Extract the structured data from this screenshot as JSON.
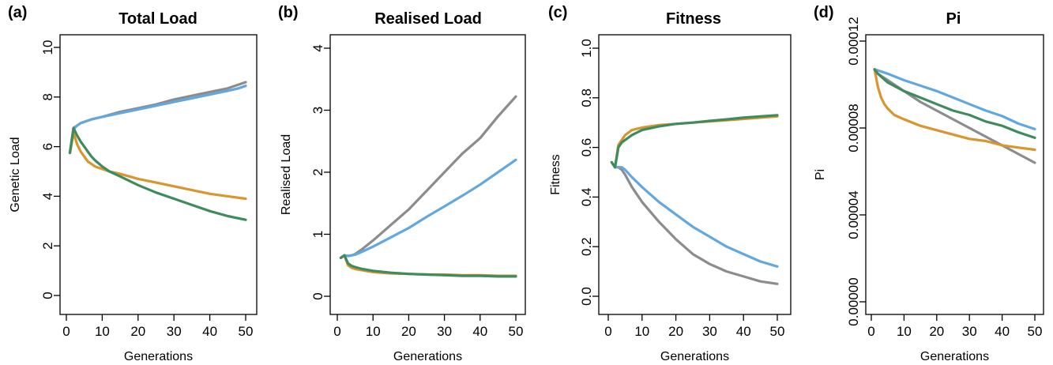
{
  "chart_data": [
    {
      "panel_label": "(a)",
      "type": "line",
      "title": "Total Load",
      "xlabel": "Generations",
      "ylabel": "Genetic Load",
      "xlim": [
        0,
        50
      ],
      "ylim": [
        0,
        10
      ],
      "xticks": [
        0,
        10,
        20,
        30,
        40,
        50
      ],
      "yticks": [
        0,
        2,
        4,
        6,
        8,
        10
      ],
      "ytick_labels": [
        "0",
        "2",
        "4",
        "6",
        "8",
        "10"
      ],
      "series": [
        {
          "color": "#8c8c8c",
          "x": [
            1,
            2,
            3,
            4,
            5,
            7,
            10,
            15,
            20,
            25,
            30,
            35,
            40,
            45,
            48,
            50
          ],
          "y": [
            5.75,
            6.75,
            6.85,
            6.95,
            7.0,
            7.1,
            7.2,
            7.4,
            7.55,
            7.7,
            7.9,
            8.05,
            8.2,
            8.35,
            8.5,
            8.6
          ]
        },
        {
          "color": "#62a8e0",
          "x": [
            1,
            2,
            3,
            4,
            5,
            7,
            10,
            15,
            20,
            25,
            30,
            35,
            40,
            45,
            48,
            50
          ],
          "y": [
            5.75,
            6.7,
            6.85,
            6.95,
            7.0,
            7.1,
            7.2,
            7.35,
            7.5,
            7.65,
            7.8,
            7.95,
            8.1,
            8.25,
            8.35,
            8.45
          ]
        },
        {
          "color": "#d9952e",
          "x": [
            1,
            2,
            3,
            4,
            5,
            6,
            7,
            8,
            10,
            12,
            15,
            20,
            25,
            30,
            35,
            40,
            45,
            50
          ],
          "y": [
            5.75,
            6.55,
            6.1,
            5.8,
            5.6,
            5.4,
            5.3,
            5.2,
            5.1,
            5.0,
            4.9,
            4.7,
            4.55,
            4.4,
            4.25,
            4.1,
            4.0,
            3.9
          ]
        },
        {
          "color": "#3e8c5e",
          "x": [
            1,
            2,
            3,
            4,
            5,
            6,
            7,
            8,
            10,
            12,
            15,
            20,
            25,
            30,
            35,
            40,
            45,
            50
          ],
          "y": [
            5.75,
            6.75,
            6.45,
            6.2,
            6.0,
            5.8,
            5.6,
            5.45,
            5.2,
            5.0,
            4.8,
            4.45,
            4.15,
            3.9,
            3.65,
            3.4,
            3.2,
            3.05
          ]
        }
      ]
    },
    {
      "panel_label": "(b)",
      "type": "line",
      "title": "Realised Load",
      "xlabel": "Generations",
      "ylabel": "Realised Load",
      "xlim": [
        0,
        50
      ],
      "ylim": [
        0,
        4
      ],
      "xticks": [
        0,
        10,
        20,
        30,
        40,
        50
      ],
      "yticks": [
        0,
        1,
        2,
        3,
        4
      ],
      "ytick_labels": [
        "0",
        "1",
        "2",
        "3",
        "4"
      ],
      "series": [
        {
          "color": "#8c8c8c",
          "x": [
            1,
            2,
            3,
            4,
            5,
            7,
            10,
            15,
            20,
            25,
            30,
            35,
            40,
            45,
            50
          ],
          "y": [
            0.62,
            0.66,
            0.65,
            0.66,
            0.68,
            0.76,
            0.9,
            1.15,
            1.4,
            1.7,
            2.0,
            2.3,
            2.55,
            2.9,
            3.22
          ]
        },
        {
          "color": "#62a8e0",
          "x": [
            1,
            2,
            3,
            4,
            5,
            7,
            10,
            15,
            20,
            25,
            30,
            35,
            40,
            45,
            50
          ],
          "y": [
            0.62,
            0.66,
            0.65,
            0.66,
            0.67,
            0.72,
            0.8,
            0.95,
            1.1,
            1.28,
            1.45,
            1.62,
            1.8,
            2.0,
            2.2
          ]
        },
        {
          "color": "#d9952e",
          "x": [
            1,
            2,
            3,
            4,
            5,
            7,
            10,
            15,
            20,
            25,
            30,
            35,
            40,
            45,
            50
          ],
          "y": [
            0.62,
            0.66,
            0.5,
            0.46,
            0.44,
            0.42,
            0.39,
            0.37,
            0.36,
            0.35,
            0.35,
            0.34,
            0.34,
            0.33,
            0.33
          ]
        },
        {
          "color": "#3e8c5e",
          "x": [
            1,
            2,
            3,
            4,
            5,
            7,
            10,
            15,
            20,
            25,
            30,
            35,
            40,
            45,
            50
          ],
          "y": [
            0.62,
            0.66,
            0.53,
            0.49,
            0.47,
            0.44,
            0.41,
            0.38,
            0.36,
            0.35,
            0.34,
            0.33,
            0.33,
            0.32,
            0.32
          ]
        }
      ]
    },
    {
      "panel_label": "(c)",
      "type": "line",
      "title": "Fitness",
      "xlabel": "Generations",
      "ylabel": "Fitness",
      "xlim": [
        0,
        50
      ],
      "ylim": [
        0,
        1
      ],
      "xticks": [
        0,
        10,
        20,
        30,
        40,
        50
      ],
      "yticks": [
        0,
        0.2,
        0.4,
        0.6,
        0.8,
        1.0
      ],
      "ytick_labels": [
        "0.0",
        "0.2",
        "0.4",
        "0.6",
        "0.8",
        "1.0"
      ],
      "series": [
        {
          "color": "#8c8c8c",
          "x": [
            1,
            2,
            3,
            4,
            5,
            7,
            10,
            15,
            20,
            25,
            30,
            35,
            40,
            45,
            50
          ],
          "y": [
            0.54,
            0.52,
            0.52,
            0.51,
            0.49,
            0.44,
            0.38,
            0.3,
            0.23,
            0.17,
            0.13,
            0.1,
            0.08,
            0.06,
            0.05
          ]
        },
        {
          "color": "#62a8e0",
          "x": [
            1,
            2,
            3,
            4,
            5,
            7,
            10,
            15,
            20,
            25,
            30,
            35,
            40,
            45,
            50
          ],
          "y": [
            0.54,
            0.52,
            0.52,
            0.52,
            0.51,
            0.48,
            0.44,
            0.38,
            0.33,
            0.28,
            0.24,
            0.2,
            0.17,
            0.14,
            0.12
          ]
        },
        {
          "color": "#d9952e",
          "x": [
            1,
            2,
            3,
            4,
            5,
            7,
            10,
            15,
            20,
            25,
            30,
            35,
            40,
            45,
            50
          ],
          "y": [
            0.54,
            0.52,
            0.61,
            0.63,
            0.65,
            0.67,
            0.68,
            0.69,
            0.695,
            0.7,
            0.705,
            0.71,
            0.715,
            0.72,
            0.725
          ]
        },
        {
          "color": "#3e8c5e",
          "x": [
            1,
            2,
            3,
            4,
            5,
            7,
            10,
            15,
            20,
            25,
            30,
            35,
            40,
            45,
            50
          ],
          "y": [
            0.54,
            0.52,
            0.6,
            0.62,
            0.63,
            0.65,
            0.67,
            0.685,
            0.695,
            0.7,
            0.707,
            0.713,
            0.72,
            0.725,
            0.73
          ]
        }
      ]
    },
    {
      "panel_label": "(d)",
      "type": "line",
      "title": "Pi",
      "xlabel": "Generations",
      "ylabel": "Pi",
      "xlim": [
        0,
        50
      ],
      "ylim": [
        0,
        0.00012
      ],
      "xticks": [
        0,
        10,
        20,
        30,
        40,
        50
      ],
      "yticks": [
        0,
        4e-05,
        8e-05,
        0.00012
      ],
      "ytick_labels": [
        "0.00000",
        "0.00004",
        "0.00008",
        "0.00012"
      ],
      "series": [
        {
          "color": "#8c8c8c",
          "x": [
            1,
            2,
            5,
            10,
            15,
            20,
            25,
            30,
            35,
            40,
            45,
            50
          ],
          "y": [
            0.000107,
            0.000105,
            0.000102,
            9.7e-05,
            9.2e-05,
            8.8e-05,
            8.4e-05,
            8e-05,
            7.6e-05,
            7.2e-05,
            6.8e-05,
            6.4e-05
          ]
        },
        {
          "color": "#62a8e0",
          "x": [
            1,
            2,
            5,
            10,
            15,
            20,
            25,
            30,
            35,
            40,
            45,
            50
          ],
          "y": [
            0.000107,
            0.0001065,
            0.000105,
            0.000102,
            9.95e-05,
            9.7e-05,
            9.4e-05,
            9.1e-05,
            8.8e-05,
            8.55e-05,
            8.2e-05,
            7.95e-05
          ]
        },
        {
          "color": "#d9952e",
          "x": [
            1,
            2,
            3,
            4,
            5,
            7,
            10,
            15,
            20,
            25,
            30,
            35,
            40,
            45,
            50
          ],
          "y": [
            0.000107,
            9.9e-05,
            9.4e-05,
            9.1e-05,
            8.9e-05,
            8.6e-05,
            8.4e-05,
            8.1e-05,
            7.9e-05,
            7.7e-05,
            7.5e-05,
            7.4e-05,
            7.2e-05,
            7.1e-05,
            7e-05
          ]
        },
        {
          "color": "#3e8c5e",
          "x": [
            1,
            2,
            5,
            10,
            15,
            20,
            25,
            30,
            35,
            40,
            45,
            50
          ],
          "y": [
            0.000107,
            0.000105,
            0.000101,
            9.7e-05,
            9.4e-05,
            9.1e-05,
            8.8e-05,
            8.6e-05,
            8.3e-05,
            8.1e-05,
            7.8e-05,
            7.55e-05
          ]
        }
      ]
    }
  ]
}
